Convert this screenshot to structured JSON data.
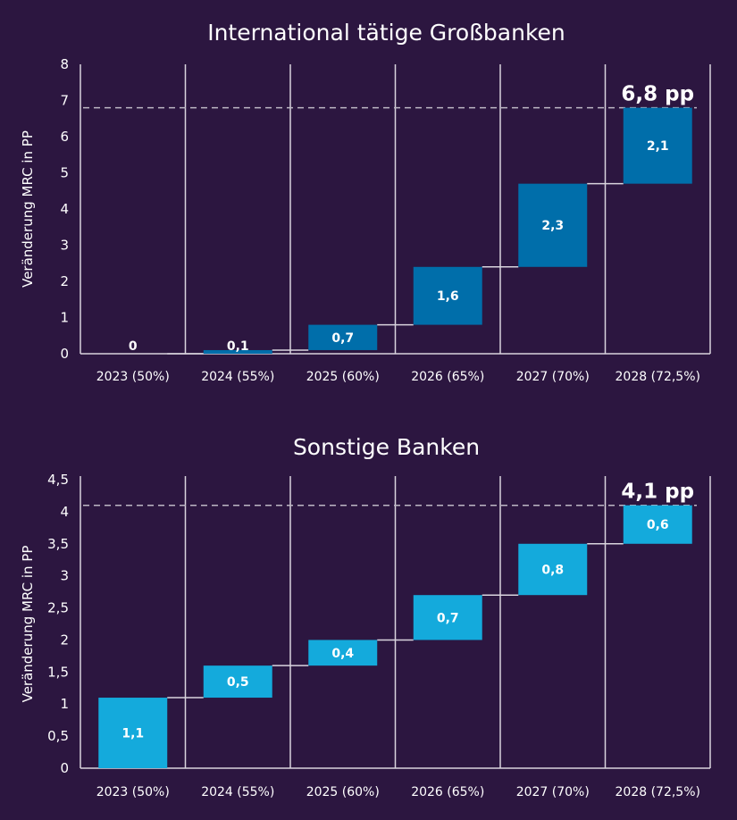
{
  "chart_data": [
    {
      "type": "bar",
      "subtype": "waterfall",
      "title": "International tätige Großbanken",
      "xlabel": "",
      "ylabel": "Veränderung MRC in PP",
      "categories": [
        "2023 (50%)",
        "2024 (55%)",
        "2025 (60%)",
        "2026 (65%)",
        "2027 (70%)",
        "2028 (72,5%)"
      ],
      "values": [
        0,
        0.1,
        0.7,
        1.6,
        2.3,
        2.1
      ],
      "value_labels": [
        "0",
        "0,1",
        "0,7",
        "1,6",
        "2,3",
        "2,1"
      ],
      "total": 6.8,
      "total_label": "6,8 pp",
      "ylim": [
        0,
        8
      ],
      "yticks": [
        0,
        1,
        2,
        3,
        4,
        5,
        6,
        7,
        8
      ],
      "ytick_labels": [
        "0",
        "1",
        "2",
        "3",
        "4",
        "5",
        "6",
        "7",
        "8"
      ],
      "bar_color": "#006eaa",
      "grid": "vertical category separators",
      "reference_line": {
        "value": 6.8,
        "style": "dashed"
      }
    },
    {
      "type": "bar",
      "subtype": "waterfall",
      "title": "Sonstige Banken",
      "xlabel": "",
      "ylabel": "Veränderung MRC in PP",
      "categories": [
        "2023 (50%)",
        "2024 (55%)",
        "2025 (60%)",
        "2026 (65%)",
        "2027 (70%)",
        "2028 (72,5%)"
      ],
      "values": [
        1.1,
        0.5,
        0.4,
        0.7,
        0.8,
        0.6
      ],
      "value_labels": [
        "1,1",
        "0,5",
        "0,4",
        "0,7",
        "0,8",
        "0,6"
      ],
      "total": 4.1,
      "total_label": "4,1 pp",
      "ylim": [
        0,
        4.5
      ],
      "yticks": [
        0,
        0.5,
        1,
        1.5,
        2,
        2.5,
        3,
        3.5,
        4,
        4.5
      ],
      "ytick_labels": [
        "0",
        "0,5",
        "1",
        "1,5",
        "2",
        "2,5",
        "3",
        "3,5",
        "4",
        "4,5"
      ],
      "bar_color": "#14aadc",
      "grid": "vertical category separators",
      "reference_line": {
        "value": 4.1,
        "style": "dashed"
      }
    }
  ],
  "colors": {
    "background": "#2c1640",
    "axis": "#d9d4de",
    "dashed_line": "#bdb7c4",
    "text": "#ffffff"
  }
}
